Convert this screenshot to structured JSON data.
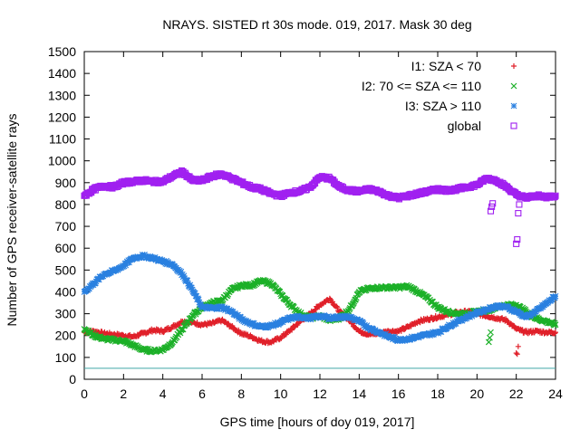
{
  "chart_data": {
    "type": "scatter",
    "title": "NRAYS. SISTED rt 30s mode. 019, 2017. Mask 30 deg",
    "xlabel": "GPS time [hours of doy 019, 2017]",
    "ylabel": "Number of GPS receiver-satellite rays",
    "xlim": [
      0,
      24
    ],
    "ylim": [
      0,
      1500
    ],
    "xticks": [
      0,
      2,
      4,
      6,
      8,
      10,
      12,
      14,
      16,
      18,
      20,
      22,
      24
    ],
    "yticks": [
      0,
      100,
      200,
      300,
      400,
      500,
      600,
      700,
      800,
      900,
      1000,
      1100,
      1200,
      1300,
      1400,
      1500
    ],
    "legend_position": "top-right",
    "threshold_line": {
      "y": 50,
      "color": "#40a8a8"
    },
    "series": [
      {
        "name": "I1: SZA < 70",
        "marker": "+",
        "color": "#e0202a",
        "x": [
          0,
          0.5,
          1,
          1.5,
          2,
          2.5,
          3,
          3.5,
          4,
          4.5,
          5,
          5.5,
          6,
          6.5,
          7,
          7.5,
          8,
          8.5,
          9,
          9.5,
          10,
          10.5,
          11,
          11.5,
          12,
          12.5,
          13,
          13.5,
          14,
          14.5,
          15,
          15.5,
          16,
          16.5,
          17,
          17.5,
          18,
          18.5,
          19,
          19.5,
          20,
          20.5,
          21,
          21.5,
          22,
          22.5,
          23,
          23.5,
          24
        ],
        "y": [
          215,
          220,
          210,
          205,
          200,
          195,
          210,
          225,
          220,
          240,
          265,
          260,
          250,
          255,
          270,
          240,
          210,
          195,
          175,
          170,
          190,
          225,
          265,
          300,
          340,
          370,
          310,
          270,
          220,
          205,
          210,
          220,
          220,
          240,
          265,
          275,
          285,
          295,
          305,
          310,
          300,
          290,
          280,
          270,
          230,
          215,
          220,
          215,
          215
        ]
      },
      {
        "name": "I2: 70 <= SZA <= 110",
        "marker": "x",
        "color": "#1cb028",
        "x": [
          0,
          0.5,
          1,
          1.5,
          2,
          2.5,
          3,
          3.5,
          4,
          4.5,
          5,
          5.5,
          6,
          6.5,
          7,
          7.5,
          8,
          8.5,
          9,
          9.5,
          10,
          10.5,
          11,
          11.5,
          12,
          12.5,
          13,
          13.5,
          14,
          14.5,
          15,
          15.5,
          16,
          16.5,
          17,
          17.5,
          18,
          18.5,
          19,
          19.5,
          20,
          20.5,
          21,
          21.5,
          22,
          22.5,
          23,
          23.5,
          24
        ],
        "y": [
          230,
          200,
          185,
          180,
          175,
          155,
          135,
          130,
          135,
          170,
          230,
          290,
          330,
          350,
          360,
          410,
          430,
          430,
          450,
          440,
          390,
          340,
          300,
          280,
          290,
          270,
          280,
          320,
          400,
          415,
          420,
          420,
          420,
          425,
          400,
          370,
          330,
          310,
          300,
          300,
          310,
          315,
          330,
          340,
          340,
          310,
          280,
          265,
          250
        ]
      },
      {
        "name": "I3: SZA > 110",
        "marker": "*",
        "color": "#2a80e0",
        "x": [
          0,
          0.5,
          1,
          1.5,
          2,
          2.5,
          3,
          3.5,
          4,
          4.5,
          5,
          5.5,
          6,
          6.5,
          7,
          7.5,
          8,
          8.5,
          9,
          9.5,
          10,
          10.5,
          11,
          11.5,
          12,
          12.5,
          13,
          13.5,
          14,
          14.5,
          15,
          15.5,
          16,
          16.5,
          17,
          17.5,
          18,
          18.5,
          19,
          19.5,
          20,
          20.5,
          21,
          21.5,
          22,
          22.5,
          23,
          23.5,
          24
        ],
        "y": [
          400,
          440,
          480,
          495,
          520,
          555,
          565,
          555,
          540,
          525,
          480,
          410,
          330,
          325,
          330,
          310,
          275,
          255,
          240,
          245,
          260,
          280,
          285,
          280,
          290,
          280,
          285,
          285,
          265,
          235,
          215,
          195,
          180,
          185,
          195,
          205,
          215,
          240,
          265,
          285,
          305,
          320,
          335,
          330,
          310,
          285,
          310,
          345,
          380
        ]
      },
      {
        "name": "global",
        "marker": "square",
        "color": "#a020f0",
        "x": [
          0,
          0.5,
          1,
          1.5,
          2,
          2.5,
          3,
          3.5,
          4,
          4.5,
          5,
          5.5,
          6,
          6.5,
          7,
          7.5,
          8,
          8.5,
          9,
          9.5,
          10,
          10.5,
          11,
          11.5,
          12,
          12.5,
          13,
          13.5,
          14,
          14.5,
          15,
          15.5,
          16,
          16.5,
          17,
          17.5,
          18,
          18.5,
          19,
          19.5,
          20,
          20.5,
          21,
          21.5,
          22,
          22.5,
          23,
          23.5,
          24
        ],
        "y": [
          840,
          870,
          885,
          880,
          900,
          905,
          910,
          905,
          905,
          930,
          950,
          910,
          910,
          930,
          940,
          920,
          900,
          880,
          870,
          850,
          840,
          855,
          860,
          880,
          925,
          920,
          880,
          865,
          860,
          870,
          860,
          840,
          830,
          840,
          850,
          860,
          870,
          865,
          870,
          880,
          890,
          920,
          910,
          880,
          845,
          830,
          840,
          835,
          840
        ]
      }
    ],
    "outliers": [
      {
        "series": "global",
        "x": [
          20.7,
          20.75,
          20.8,
          22.0,
          22.05,
          22.1,
          22.15
        ],
        "y": [
          770,
          790,
          805,
          620,
          640,
          760,
          800
        ]
      },
      {
        "series": "I1: SZA < 70",
        "x": [
          22.0,
          22.05,
          22.1
        ],
        "y": [
          120,
          115,
          150
        ]
      },
      {
        "series": "I2: 70 <= SZA <= 110",
        "x": [
          20.6,
          20.65,
          20.7
        ],
        "y": [
          170,
          190,
          215
        ]
      }
    ]
  }
}
